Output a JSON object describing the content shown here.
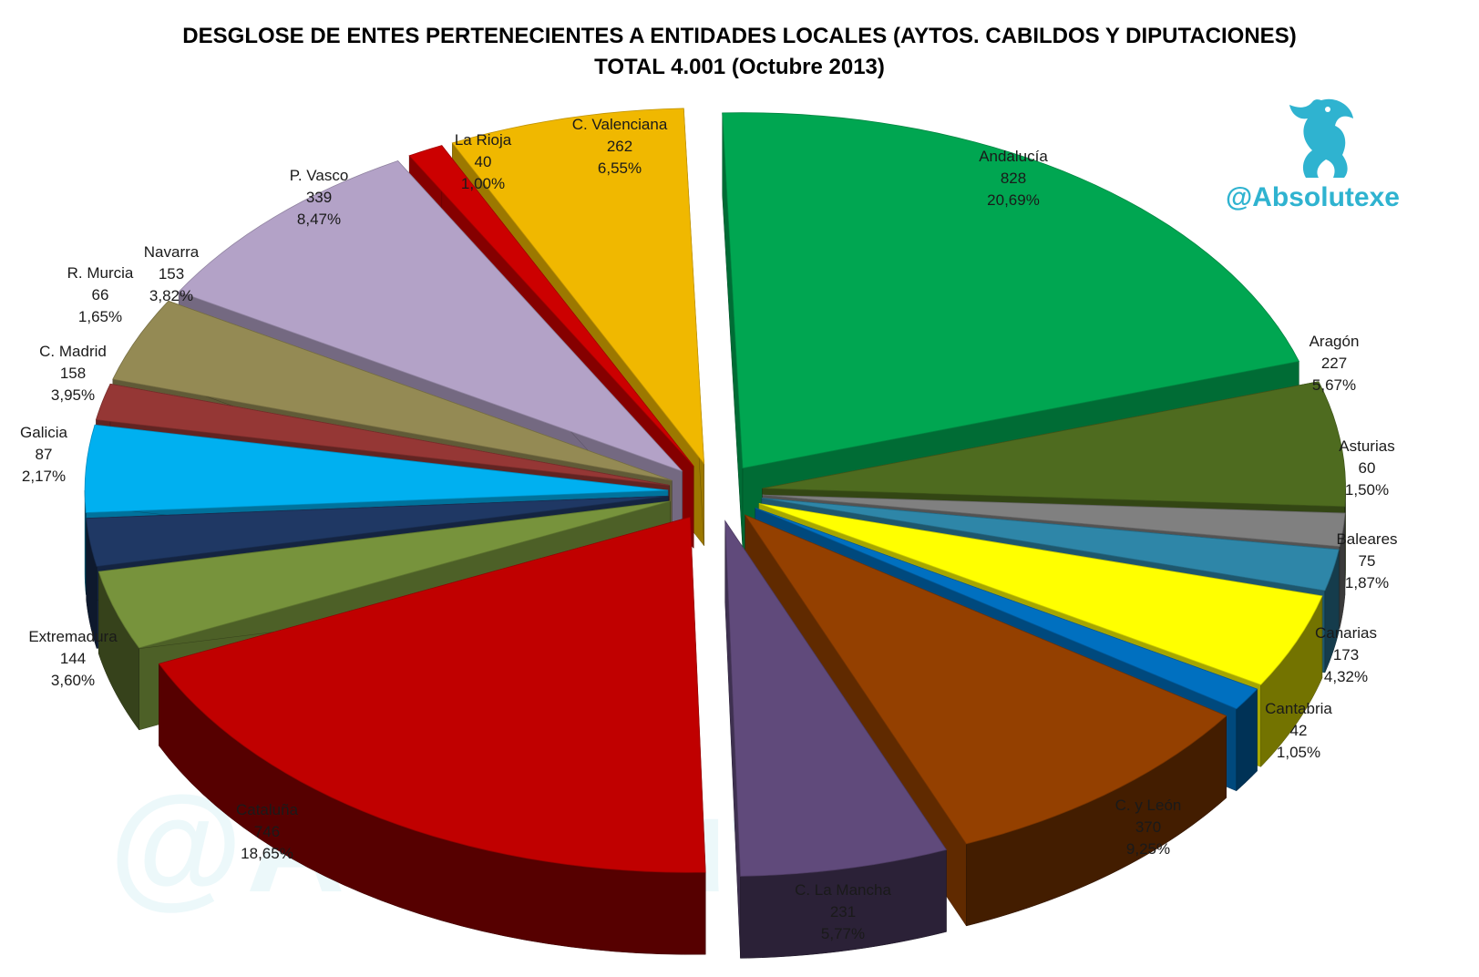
{
  "title": "DESGLOSE DE ENTES PERTENECIENTES  A ENTIDADES LOCALES (AYTOS. CABILDOS Y DIPUTACIONES)",
  "subtitle": "TOTAL 4.001 (Octubre 2013)",
  "handle": "@Absolutexe",
  "watermark": "@Absolutexe",
  "logo_icon": "griffin-icon",
  "chart_data": {
    "type": "pie",
    "style": "3d-exploded",
    "total": 4001,
    "slices": [
      {
        "name": "Andalucía",
        "value": 828,
        "value_label": "828",
        "percent": "20,69%",
        "color": "#00a651"
      },
      {
        "name": "Aragón",
        "value": 227,
        "value_label": "227",
        "percent": "5,67%",
        "color": "#4e6b1f"
      },
      {
        "name": "Asturias",
        "value": 60,
        "value_label": "60",
        "percent": "1,50%",
        "color": "#808080"
      },
      {
        "name": "Baleares",
        "value": 75,
        "value_label": "75",
        "percent": "1,87%",
        "color": "#2e86a8"
      },
      {
        "name": "Canarias",
        "value": 173,
        "value_label": "173",
        "percent": "4,32%",
        "color": "#ffff00"
      },
      {
        "name": "Cantabria",
        "value": 42,
        "value_label": "42",
        "percent": "1,05%",
        "color": "#0070c0"
      },
      {
        "name": "C. y León",
        "value": 370,
        "value_label": "370",
        "percent": "9,25%",
        "color": "#944000"
      },
      {
        "name": "C. La Mancha",
        "value": 231,
        "value_label": "231",
        "percent": "5,77%",
        "color": "#604a7b"
      },
      {
        "name": "Cataluña",
        "value": 746,
        "value_label": "746",
        "percent": "18,65%",
        "color": "#c00000"
      },
      {
        "name": "Extremadura",
        "value": 144,
        "value_label": "144",
        "percent": "3,60%",
        "color": "#77933c"
      },
      {
        "name": "Galicia",
        "value": 87,
        "value_label": "87",
        "percent": "2,17%",
        "color": "#1f3864"
      },
      {
        "name": "C. Madrid",
        "value": 158,
        "value_label": "158",
        "percent": "3,95%",
        "color": "#00b0f0"
      },
      {
        "name": "R. Murcia",
        "value": 66,
        "value_label": "66",
        "percent": "1,65%",
        "color": "#953735"
      },
      {
        "name": "Navarra",
        "value": 153,
        "value_label": "153",
        "percent": "3,82%",
        "color": "#948a54"
      },
      {
        "name": "P. Vasco",
        "value": 339,
        "value_label": "339",
        "percent": "8,47%",
        "color": "#b3a2c7"
      },
      {
        "name": "La Rioja",
        "value": 40,
        "value_label": "40",
        "percent": "1,00%",
        "color": "#cc0000"
      },
      {
        "name": "C. Valenciana",
        "value": 262,
        "value_label": "262",
        "percent": "6,55%",
        "color": "#f0b800"
      }
    ]
  }
}
